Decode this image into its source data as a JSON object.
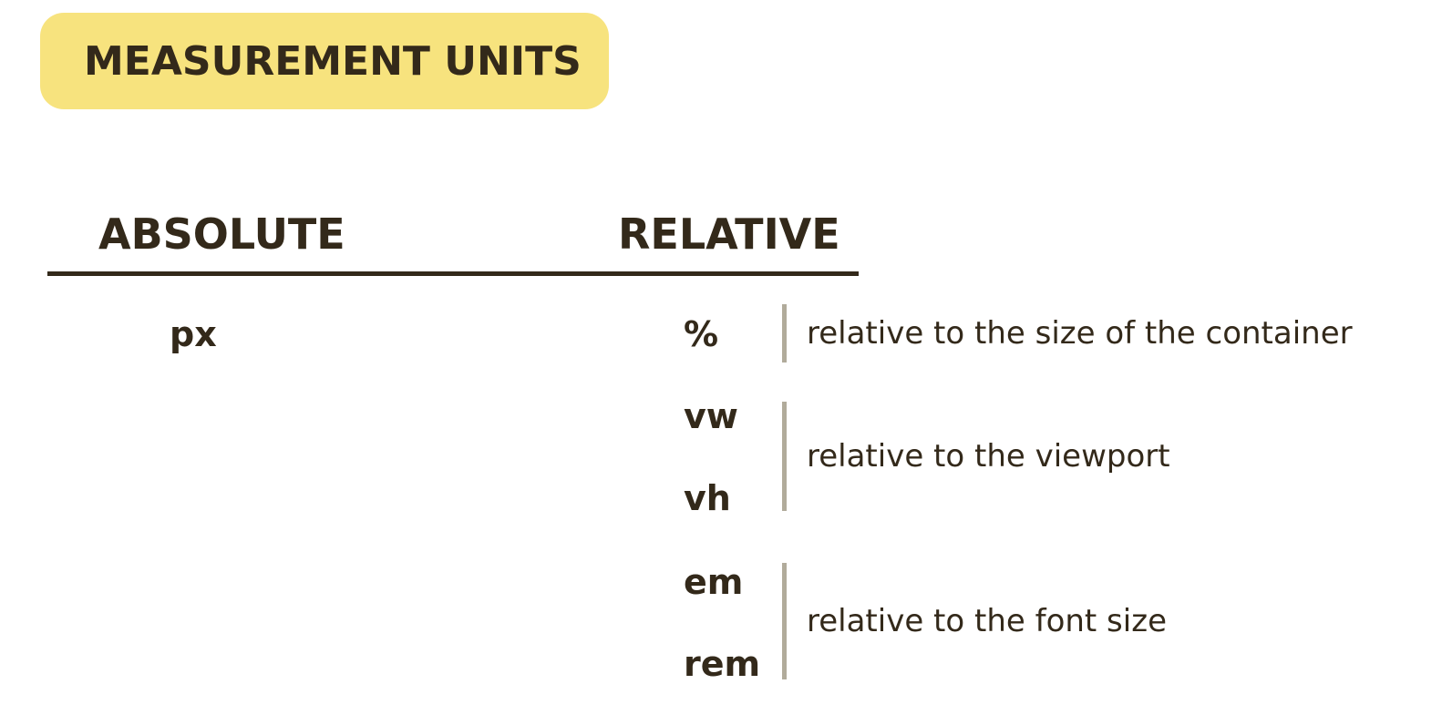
{
  "title": "MEASUREMENT UNITS",
  "columns": {
    "absolute": "ABSOLUTE",
    "relative": "RELATIVE"
  },
  "absolute_units": [
    "px"
  ],
  "relative_groups": [
    {
      "units": [
        "%"
      ],
      "description": "relative to the size of the container"
    },
    {
      "units": [
        "vw",
        "vh"
      ],
      "description": "relative to the viewport"
    },
    {
      "units": [
        "em",
        "rem"
      ],
      "description": "relative to the font size"
    }
  ],
  "colors": {
    "badge": "#f7e37e",
    "text": "#33291a",
    "divider": "#b1ab9b"
  }
}
